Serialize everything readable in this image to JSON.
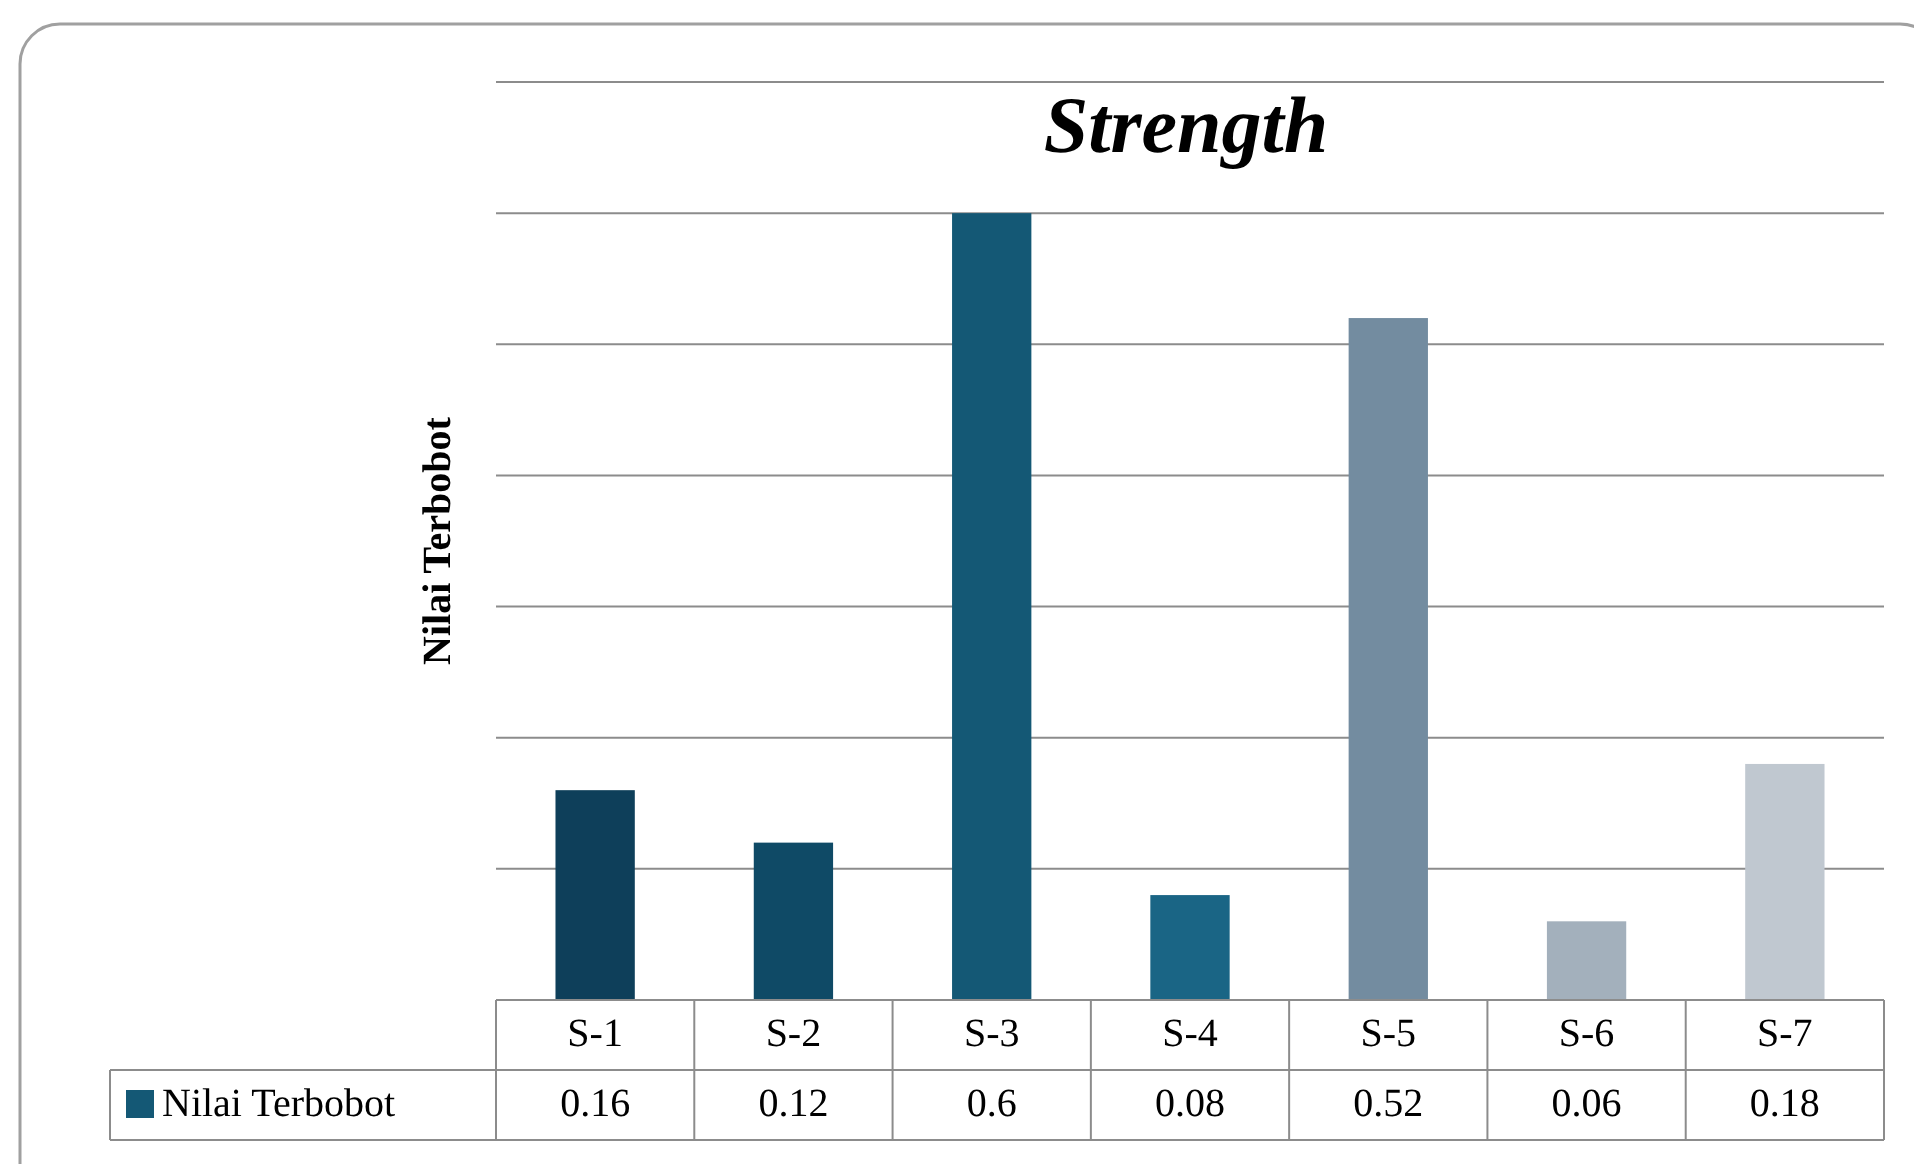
{
  "chart_data": {
    "type": "bar",
    "title": "Strength",
    "ylabel": "Nilai Terbobot",
    "categories": [
      "S-1",
      "S-2",
      "S-3",
      "S-4",
      "S-5",
      "S-6",
      "S-7"
    ],
    "series": [
      {
        "name": "Nilai Terbobot",
        "color": "#145875",
        "colors": [
          "#0e3f5a",
          "#0f4a66",
          "#145875",
          "#1a6585",
          "#738ca0",
          "#a3b0bc",
          "#c0c8d0"
        ],
        "values": [
          0.16,
          0.12,
          0.6,
          0.08,
          0.52,
          0.06,
          0.18
        ]
      }
    ],
    "ylim": [
      0,
      0.7
    ],
    "yticks": [
      {
        "value": 0,
        "label": null
      },
      {
        "value": 0.1,
        "label": null
      },
      {
        "value": 0.2,
        "label": null
      },
      {
        "value": 0.3,
        "label": null
      },
      {
        "value": 0.4,
        "label": null
      },
      {
        "value": 0.5,
        "label": null
      },
      {
        "value": 0.6,
        "label": null
      },
      {
        "value": 0.7,
        "label": null
      }
    ],
    "grid": "y",
    "tick_labels": "x",
    "data_labels": true,
    "legend": "bottom"
  }
}
